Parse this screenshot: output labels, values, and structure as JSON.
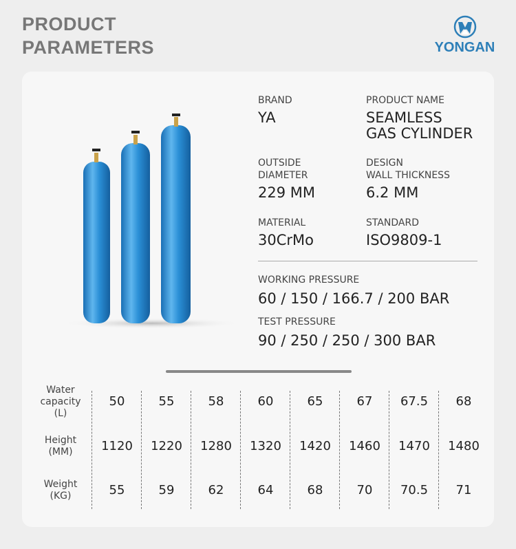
{
  "header": {
    "title_line1": "PRODUCT",
    "title_line2": "PARAMETERS",
    "brand_logo": "YONGAN",
    "brand_color": "#2d7fb8"
  },
  "specs": {
    "brand_label": "BRAND",
    "brand_value": "YA",
    "product_name_label": "PRODUCT NAME",
    "product_name_line1": "SEAMLESS",
    "product_name_line2": "GAS CYLINDER",
    "diameter_label_1": "OUTSIDE",
    "diameter_label_2": "DIAMETER",
    "diameter_value": "229 MM",
    "wall_label_1": "DESIGN",
    "wall_label_2": "WALL THICKNESS",
    "wall_value": "6.2 MM",
    "material_label": "MATERIAL",
    "material_value": "30CrMo",
    "standard_label": "STANDARD",
    "standard_value": "ISO9809-1",
    "working_pressure_label": "WORKING PRESSURE",
    "working_pressure_value": "60 / 150 / 166.7 / 200 BAR",
    "test_pressure_label": "TEST PRESSURE",
    "test_pressure_value": "90 / 250 / 250 / 300 BAR"
  },
  "cylinder_color": "#2a8fd6",
  "table": {
    "rows": [
      {
        "label": [
          "Water",
          "capacity",
          "(L)"
        ],
        "values": [
          "50",
          "55",
          "58",
          "60",
          "65",
          "67",
          "67.5",
          "68"
        ]
      },
      {
        "label": [
          "Height",
          "(MM)"
        ],
        "values": [
          "1120",
          "1220",
          "1280",
          "1320",
          "1420",
          "1460",
          "1470",
          "1480"
        ]
      },
      {
        "label": [
          "Weight",
          "(KG)"
        ],
        "values": [
          "55",
          "59",
          "62",
          "64",
          "68",
          "70",
          "70.5",
          "71"
        ]
      }
    ]
  }
}
